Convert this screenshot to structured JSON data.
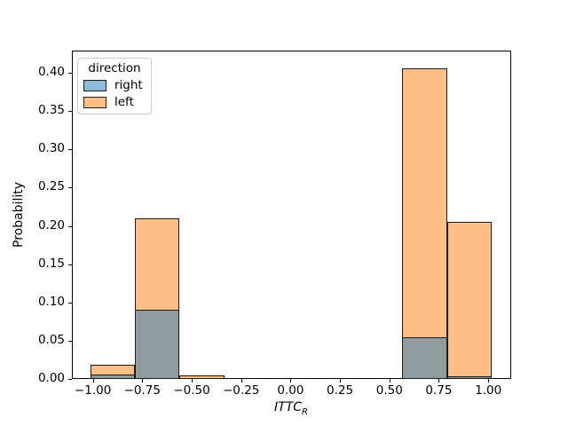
{
  "chart_data": {
    "type": "bar",
    "subtype": "layered-histogram",
    "title": "",
    "xlabel": "ITTC",
    "xlabel_subscript": "R",
    "ylabel": "Probability",
    "xlim": [
      -1.106,
      1.116
    ],
    "ylim": [
      0,
      0.429
    ],
    "grid": false,
    "legend_position": "upper left",
    "bin_edges": [
      -1.011,
      -0.786,
      -0.561,
      -0.335,
      -0.11,
      0.115,
      0.34,
      0.566,
      0.791,
      1.016
    ],
    "series": [
      {
        "name": "left",
        "values": [
          0.018,
          0.21,
          0.005,
          0,
          0,
          0,
          0,
          0.406,
          0.205
        ]
      },
      {
        "name": "right",
        "values": [
          0.006,
          0.09,
          0.0,
          0,
          0,
          0,
          0,
          0.055,
          0.004
        ]
      }
    ],
    "x_ticks": [
      {
        "v": -1.0,
        "label": "−1.00"
      },
      {
        "v": -0.75,
        "label": "−0.75"
      },
      {
        "v": -0.5,
        "label": "−0.50"
      },
      {
        "v": -0.25,
        "label": "−0.25"
      },
      {
        "v": 0.0,
        "label": "0.00"
      },
      {
        "v": 0.25,
        "label": "0.25"
      },
      {
        "v": 0.5,
        "label": "0.50"
      },
      {
        "v": 0.75,
        "label": "0.75"
      },
      {
        "v": 1.0,
        "label": "1.00"
      }
    ],
    "y_ticks": [
      {
        "v": 0.0,
        "label": "0.00"
      },
      {
        "v": 0.05,
        "label": "0.05"
      },
      {
        "v": 0.1,
        "label": "0.10"
      },
      {
        "v": 0.15,
        "label": "0.15"
      },
      {
        "v": 0.2,
        "label": "0.20"
      },
      {
        "v": 0.25,
        "label": "0.25"
      },
      {
        "v": 0.3,
        "label": "0.30"
      },
      {
        "v": 0.35,
        "label": "0.35"
      },
      {
        "v": 0.4,
        "label": "0.40"
      }
    ],
    "colors": {
      "right_fill": "#8fbbd9",
      "left_fill": "#ffbf86",
      "overlap_fill": "#8f9b9d",
      "edge": "#1a1a1a"
    },
    "legend": {
      "title": "direction",
      "entries": [
        {
          "label": "right",
          "color_key": "right_fill"
        },
        {
          "label": "left",
          "color_key": "left_fill"
        }
      ]
    }
  }
}
